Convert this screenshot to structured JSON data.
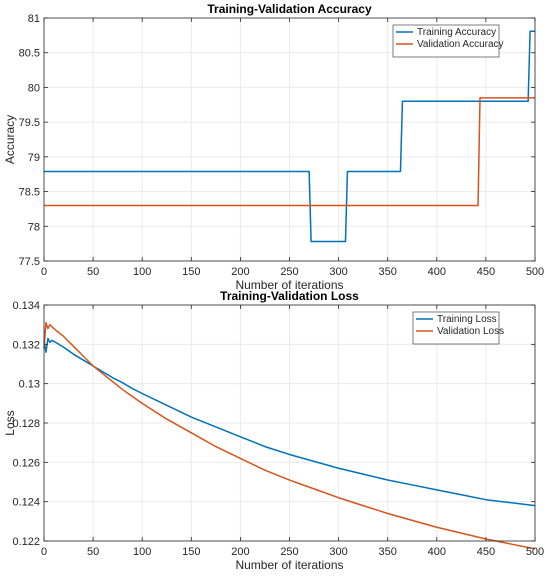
{
  "chart_data": [
    {
      "type": "line",
      "title": "Training-Validation Accuracy",
      "xlabel": "Number of iterations",
      "ylabel": "Accuracy",
      "xlim": [
        0,
        500
      ],
      "ylim": [
        77.5,
        81
      ],
      "xticks": [
        0,
        50,
        100,
        150,
        200,
        250,
        300,
        350,
        400,
        450,
        500
      ],
      "yticks": [
        77.5,
        78,
        78.5,
        79,
        79.5,
        80,
        80.5,
        81
      ],
      "grid": true,
      "legend_position": "top-right",
      "series": [
        {
          "name": "Training Accuracy",
          "color": "#0072BD",
          "x": [
            0,
            270,
            272,
            307,
            309,
            363,
            365,
            493,
            495,
            500
          ],
          "y": [
            78.79,
            78.79,
            77.78,
            77.78,
            78.79,
            78.79,
            79.8,
            79.8,
            80.81,
            80.81
          ]
        },
        {
          "name": "Validation Accuracy",
          "color": "#D95319",
          "x": [
            0,
            442,
            444,
            500
          ],
          "y": [
            78.3,
            78.3,
            79.85,
            79.85
          ]
        }
      ]
    },
    {
      "type": "line",
      "title": "Training-Validation Loss",
      "xlabel": "Number of iterations",
      "ylabel": "Loss",
      "xlim": [
        0,
        500
      ],
      "ylim": [
        0.122,
        0.134
      ],
      "xticks": [
        0,
        50,
        100,
        150,
        200,
        250,
        300,
        350,
        400,
        450,
        500
      ],
      "yticks": [
        0.122,
        0.124,
        0.126,
        0.128,
        0.13,
        0.132,
        0.134
      ],
      "grid": true,
      "legend_position": "top-right",
      "series": [
        {
          "name": "Training Loss",
          "color": "#0072BD",
          "x": [
            0,
            2,
            4,
            6,
            8,
            12,
            20,
            30,
            40,
            50,
            60,
            70,
            80,
            90,
            100,
            125,
            150,
            175,
            200,
            225,
            250,
            275,
            300,
            325,
            350,
            375,
            400,
            425,
            450,
            475,
            500
          ],
          "y": [
            0.1322,
            0.1316,
            0.1323,
            0.1321,
            0.1322,
            0.1321,
            0.13185,
            0.1315,
            0.1312,
            0.1309,
            0.1306,
            0.1303,
            0.13005,
            0.12975,
            0.1295,
            0.1289,
            0.1283,
            0.1278,
            0.1273,
            0.1268,
            0.1264,
            0.12605,
            0.1257,
            0.1254,
            0.1251,
            0.12485,
            0.1246,
            0.12435,
            0.1241,
            0.12395,
            0.1238
          ]
        },
        {
          "name": "Validation Loss",
          "color": "#D95319",
          "x": [
            0,
            2,
            4,
            6,
            10,
            20,
            30,
            40,
            50,
            60,
            70,
            80,
            90,
            100,
            125,
            150,
            175,
            200,
            225,
            250,
            275,
            300,
            325,
            350,
            375,
            400,
            425,
            450,
            475,
            500
          ],
          "y": [
            0.1318,
            0.1331,
            0.1328,
            0.133,
            0.1328,
            0.1324,
            0.1319,
            0.1314,
            0.1309,
            0.1305,
            0.1301,
            0.1297,
            0.12935,
            0.129,
            0.1282,
            0.1275,
            0.1268,
            0.1262,
            0.1256,
            0.1251,
            0.12465,
            0.1242,
            0.1238,
            0.1234,
            0.12305,
            0.1227,
            0.1224,
            0.1221,
            0.12185,
            0.1216
          ]
        }
      ]
    }
  ]
}
